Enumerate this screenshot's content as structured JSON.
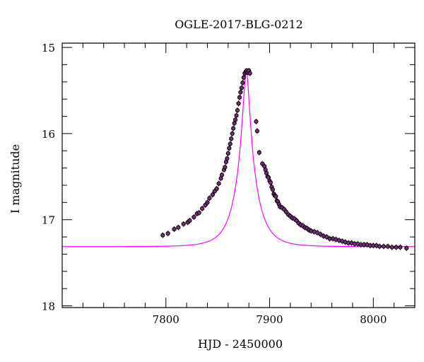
{
  "chart_data": {
    "type": "scatter",
    "title": "OGLE-2017-BLG-0212",
    "xlabel": "HJD - 2450000",
    "ylabel": "I magnitude",
    "xlim": [
      7700,
      8040
    ],
    "ylim": [
      18.02,
      14.95
    ],
    "y_inverted": true,
    "x_ticks": [
      7800,
      7900,
      8000
    ],
    "y_ticks": [
      15,
      16,
      17,
      18
    ],
    "grid": false,
    "model_color": "#ff00ff",
    "point_color": "#000000",
    "point_fill": "#7a2c7a",
    "model": {
      "name": "",
      "baseline_mag": 17.35,
      "peak_mag": 15.28,
      "t0": 7877.5,
      "u0": 0.1552,
      "tE": 18.0
    },
    "series": [
      {
        "name": "",
        "x": [
          7797,
          7802,
          7808,
          7812,
          7817,
          7821,
          7823,
          7827,
          7830,
          7832,
          7835,
          7838,
          7840,
          7842,
          7845,
          7847,
          7849,
          7851,
          7853,
          7854,
          7856,
          7857,
          7858,
          7859,
          7860,
          7861,
          7862,
          7863,
          7864,
          7865,
          7866,
          7867,
          7868,
          7869,
          7870,
          7871,
          7872,
          7873,
          7874,
          7875,
          7876,
          7877,
          7878,
          7879,
          7880,
          7881,
          7887,
          7888,
          7890,
          7893,
          7895,
          7896,
          7897,
          7898,
          7899,
          7900,
          7901,
          7902,
          7903,
          7904,
          7905,
          7906,
          7907,
          7908,
          7909,
          7910,
          7912,
          7914,
          7916,
          7918,
          7920,
          7922,
          7924,
          7926,
          7928,
          7930,
          7932,
          7934,
          7936,
          7938,
          7940,
          7943,
          7946,
          7949,
          7952,
          7955,
          7958,
          7961,
          7964,
          7967,
          7970,
          7973,
          7976,
          7979,
          7982,
          7985,
          7988,
          7991,
          7994,
          7997,
          8000,
          8003,
          8006,
          8010,
          8014,
          8018,
          8022,
          8026,
          8032
        ],
        "y": [
          17.18,
          17.16,
          17.11,
          17.09,
          17.05,
          17.03,
          17.01,
          16.97,
          16.93,
          16.92,
          16.87,
          16.83,
          16.8,
          16.75,
          16.71,
          16.67,
          16.64,
          16.58,
          16.52,
          16.48,
          16.42,
          16.39,
          16.33,
          16.29,
          16.23,
          16.17,
          16.12,
          16.06,
          16.0,
          15.94,
          15.88,
          15.84,
          15.79,
          15.73,
          15.65,
          15.58,
          15.52,
          15.47,
          15.41,
          15.35,
          15.3,
          15.28,
          15.27,
          15.29,
          15.27,
          15.3,
          15.86,
          15.97,
          16.22,
          16.35,
          16.38,
          16.42,
          16.46,
          16.5,
          16.51,
          16.55,
          16.57,
          16.62,
          16.65,
          16.7,
          16.72,
          16.73,
          16.78,
          16.79,
          16.82,
          16.85,
          16.86,
          16.88,
          16.91,
          16.94,
          16.96,
          16.98,
          16.99,
          17.01,
          17.04,
          17.06,
          17.07,
          17.09,
          17.1,
          17.12,
          17.13,
          17.14,
          17.15,
          17.17,
          17.19,
          17.2,
          17.22,
          17.22,
          17.23,
          17.24,
          17.25,
          17.26,
          17.27,
          17.27,
          17.28,
          17.28,
          17.29,
          17.29,
          17.29,
          17.3,
          17.3,
          17.3,
          17.31,
          17.31,
          17.31,
          17.32,
          17.32,
          17.32,
          17.33
        ]
      }
    ]
  }
}
